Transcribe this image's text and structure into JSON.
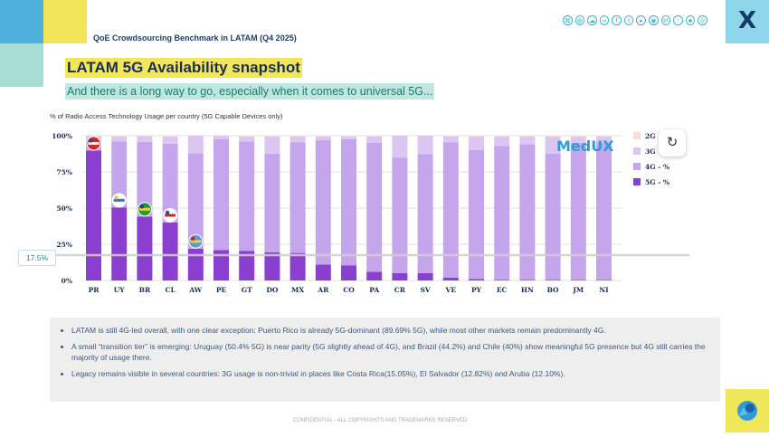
{
  "header": {
    "benchmark": "QoE Crowdsourcing Benchmark in LATAM (Q4 2025)",
    "title": "LATAM 5G Availability snapshot",
    "subtitle": "And there is a long way to go, especially when it comes to universal 5G..."
  },
  "brand": {
    "logo_letter": "X",
    "chart_logo": "MedUX",
    "social_icons": [
      "network-icon",
      "globe-icon",
      "cloud-icon",
      "link-icon",
      "facebook-icon",
      "twitter-icon",
      "youtube-icon",
      "android-icon",
      "share-icon",
      "upload-icon",
      "tree-icon",
      "instagram-icon"
    ]
  },
  "colors": {
    "c5g": "#8a3fd1",
    "c4g": "#c5a6ec",
    "c3g": "#dcc6f2",
    "c2g": "#f8dcd8",
    "yellow": "#f2e65c",
    "teal": "#a8ded8",
    "blue": "#4fb0de"
  },
  "chart_data": {
    "type": "bar",
    "stacked": true,
    "title": "% of Radio Access Technology Usage per country (5G Capable Devices only)",
    "categories": [
      "PR",
      "UY",
      "BR",
      "CL",
      "AW",
      "PE",
      "GT",
      "DO",
      "MX",
      "AR",
      "CO",
      "PA",
      "CR",
      "SV",
      "VE",
      "PY",
      "EC",
      "HN",
      "BO",
      "JM",
      "NI"
    ],
    "ylim": [
      0,
      100
    ],
    "yticks": [
      "0%",
      "25%",
      "50%",
      "75%",
      "100%"
    ],
    "series": [
      {
        "name": "5G - %",
        "values": [
          89.69,
          50.4,
          44.2,
          40.0,
          22.0,
          21.0,
          20.5,
          19.5,
          19.0,
          11.0,
          10.5,
          6.0,
          5.0,
          5.0,
          2.0,
          1.0,
          0.5,
          0.5,
          0.5,
          0.3,
          0.3
        ]
      },
      {
        "name": "4G - %",
        "values": [
          7.0,
          45.6,
          51.5,
          54.5,
          65.9,
          76.5,
          75.5,
          68.0,
          76.5,
          86.0,
          87.0,
          89.0,
          79.95,
          82.18,
          93.5,
          89.0,
          92.5,
          93.5,
          87.0,
          94.7,
          95.2
        ]
      },
      {
        "name": "3G - %",
        "values": [
          3.0,
          3.5,
          4.0,
          5.0,
          12.1,
          2.5,
          3.5,
          12.0,
          4.0,
          2.5,
          2.0,
          4.5,
          15.05,
          12.82,
          4.0,
          9.5,
          6.5,
          5.5,
          12.0,
          4.5,
          4.0
        ]
      },
      {
        "name": "2G - %",
        "values": [
          0.31,
          0.5,
          0.3,
          0.5,
          0.0,
          0.0,
          0.5,
          0.5,
          0.5,
          0.5,
          0.5,
          0.5,
          0.0,
          0.0,
          0.5,
          0.5,
          0.5,
          0.5,
          0.5,
          0.5,
          0.5
        ]
      }
    ],
    "legend": [
      "2G",
      "3G",
      "4G - %",
      "5G - %"
    ],
    "flags": {
      "PR": "flag-puerto-rico",
      "UY": "flag-uruguay",
      "BR": "flag-brazil",
      "CL": "flag-chile",
      "AW": "flag-aruba"
    },
    "reference_line": {
      "value": 17.5,
      "label": "17.5%"
    }
  },
  "notes": [
    "LATAM is still 4G-led overall, with one clear exception: Puerto Rico is already 5G-dominant (89.69% 5G), while most other markets remain predominantly 4G.",
    "A small “transition tier” is emerging: Uruguay (50.4% 5G) is near parity (5G slightly ahead of 4G), and Brazil (44.2%) and Chile (40%) show meaningful 5G presence but 4G still carries the majority of usage there.",
    "Legacy remains visible in several countries: 3G usage is non-trivial in places like Costa Rica(15.05%), El Salvador (12.82%) and Aruba (12.10%)."
  ],
  "footer": "CONFIDENTIAL - ALL COPYRIGHTS AND TRADEMARKS RESERVED"
}
